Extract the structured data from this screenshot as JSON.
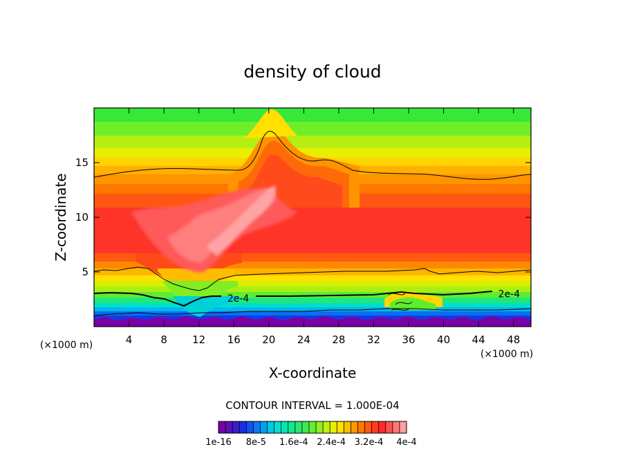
{
  "chart_data": {
    "type": "heatmap",
    "title": "density of cloud",
    "xlabel": "X-coordinate",
    "ylabel": "Z-coordinate",
    "x_unit_label_left": "(×1000 m)",
    "x_unit_label_right": "(×1000 m)",
    "xlim": [
      0,
      50
    ],
    "ylim": [
      0,
      20
    ],
    "x_ticks": [
      4,
      8,
      12,
      16,
      20,
      24,
      28,
      32,
      36,
      40,
      44,
      48
    ],
    "y_ticks": [
      5,
      10,
      15
    ],
    "contour_interval_text": "CONTOUR INTERVAL = 1.000E-04",
    "contour_lines": [
      {
        "level_label": "2e-4",
        "label_positions": [
          [
            16.5,
            2.6
          ],
          [
            47.5,
            3.0
          ]
        ]
      },
      {
        "level_label": "",
        "label_positions": []
      }
    ],
    "colorbar": {
      "colors": [
        "#7a00a8",
        "#5a10b8",
        "#3a1ed0",
        "#1c2ee6",
        "#1450f0",
        "#0a78f0",
        "#00a0f0",
        "#00c8e8",
        "#00e0d0",
        "#00e8b0",
        "#10e890",
        "#28e870",
        "#40e850",
        "#60f030",
        "#90f020",
        "#bff010",
        "#e8f000",
        "#ffe000",
        "#ffbf00",
        "#ff9800",
        "#ff7800",
        "#ff5a10",
        "#ff3c20",
        "#ff2a2a",
        "#ff5050",
        "#ff7878",
        "#ffa0a0"
      ],
      "tick_labels": [
        "1e-16",
        "8e-5",
        "1.6e-4",
        "2.4e-4",
        "3.2e-4",
        "4e-4"
      ]
    }
  }
}
